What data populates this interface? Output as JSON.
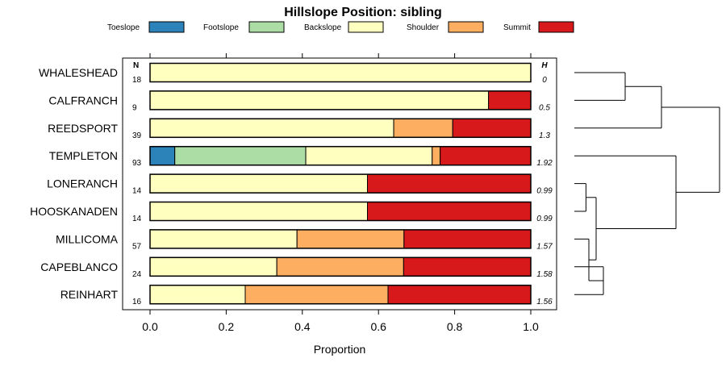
{
  "chart_data": {
    "type": "bar",
    "orientation": "horizontal",
    "stacked": true,
    "title": "Hillslope Position: sibling",
    "xlabel": "Proportion",
    "ylabel": "",
    "xlim": [
      0,
      1
    ],
    "x_ticks": [
      0.0,
      0.2,
      0.4,
      0.6,
      0.8,
      1.0
    ],
    "x_tick_labels": [
      "0.0",
      "0.2",
      "0.4",
      "0.6",
      "0.8",
      "1.0"
    ],
    "legend_position": "top",
    "n_header": "N",
    "h_header": "H",
    "series": [
      {
        "name": "Toeslope",
        "color": "#2B83BA"
      },
      {
        "name": "Footslope",
        "color": "#ABDDA4"
      },
      {
        "name": "Backslope",
        "color": "#FFFFBF"
      },
      {
        "name": "Shoulder",
        "color": "#FDAE61"
      },
      {
        "name": "Summit",
        "color": "#D7191C"
      }
    ],
    "categories": [
      "WHALESHEAD",
      "CALFRANCH",
      "REEDSPORT",
      "TEMPLETON",
      "LONERANCH",
      "HOOSKANADEN",
      "MILLICOMA",
      "CAPEBLANCO",
      "REINHART"
    ],
    "rows": [
      {
        "label": "WHALESHEAD",
        "n": "18",
        "h": "0",
        "values": [
          0,
          0,
          1.0,
          0,
          0
        ]
      },
      {
        "label": "CALFRANCH",
        "n": "9",
        "h": "0.5",
        "values": [
          0,
          0,
          0.889,
          0,
          0.111
        ]
      },
      {
        "label": "REEDSPORT",
        "n": "39",
        "h": "1.3",
        "values": [
          0,
          0,
          0.64,
          0.155,
          0.205
        ]
      },
      {
        "label": "TEMPLETON",
        "n": "93",
        "h": "1.92",
        "values": [
          0.065,
          0.344,
          0.332,
          0.021,
          0.238
        ]
      },
      {
        "label": "LONERANCH",
        "n": "14",
        "h": "0.99",
        "values": [
          0,
          0,
          0.571,
          0,
          0.429
        ]
      },
      {
        "label": "HOOSKANADEN",
        "n": "14",
        "h": "0.99",
        "values": [
          0,
          0,
          0.571,
          0,
          0.429
        ]
      },
      {
        "label": "MILLICOMA",
        "n": "57",
        "h": "1.57",
        "values": [
          0,
          0,
          0.386,
          0.281,
          0.333
        ]
      },
      {
        "label": "CAPEBLANCO",
        "n": "24",
        "h": "1.58",
        "values": [
          0,
          0,
          0.333,
          0.333,
          0.334
        ]
      },
      {
        "label": "REINHART",
        "n": "16",
        "h": "1.56",
        "values": [
          0,
          0,
          0.25,
          0.375,
          0.375
        ]
      }
    ],
    "dendrogram": {
      "merges": [
        {
          "left": "WHALESHEAD",
          "right": "CALFRANCH",
          "height": 0.35
        },
        {
          "left": "WHALESHEAD+CALFRANCH",
          "right": "REEDSPORT",
          "height": 0.6
        },
        {
          "left": "LONERANCH",
          "right": "HOOSKANADEN",
          "height": 0.08
        },
        {
          "left": "CAPEBLANCO",
          "right": "REINHART",
          "height": 0.2
        },
        {
          "left": "MILLICOMA",
          "right": "CAPEBLANCO+REINHART",
          "height": 0.1
        },
        {
          "left": "LONERANCH+HOOSKANADEN",
          "right": "MILLICOMA+CAPEBLANCO+REINHART",
          "height": 0.15
        },
        {
          "left": "TEMPLETON",
          "right": "LONERANCH+HOOSKANADEN+MILLICOMA+CAPEBLANCO+REINHART",
          "height": 0.7
        },
        {
          "left": "WHALESHEAD+CALFRANCH+REEDSPORT",
          "right": "TEMPLETON+LONERANCH+HOOSKANADEN+MILLICOMA+CAPEBLANCO+REINHART",
          "height": 1.0
        }
      ]
    }
  }
}
